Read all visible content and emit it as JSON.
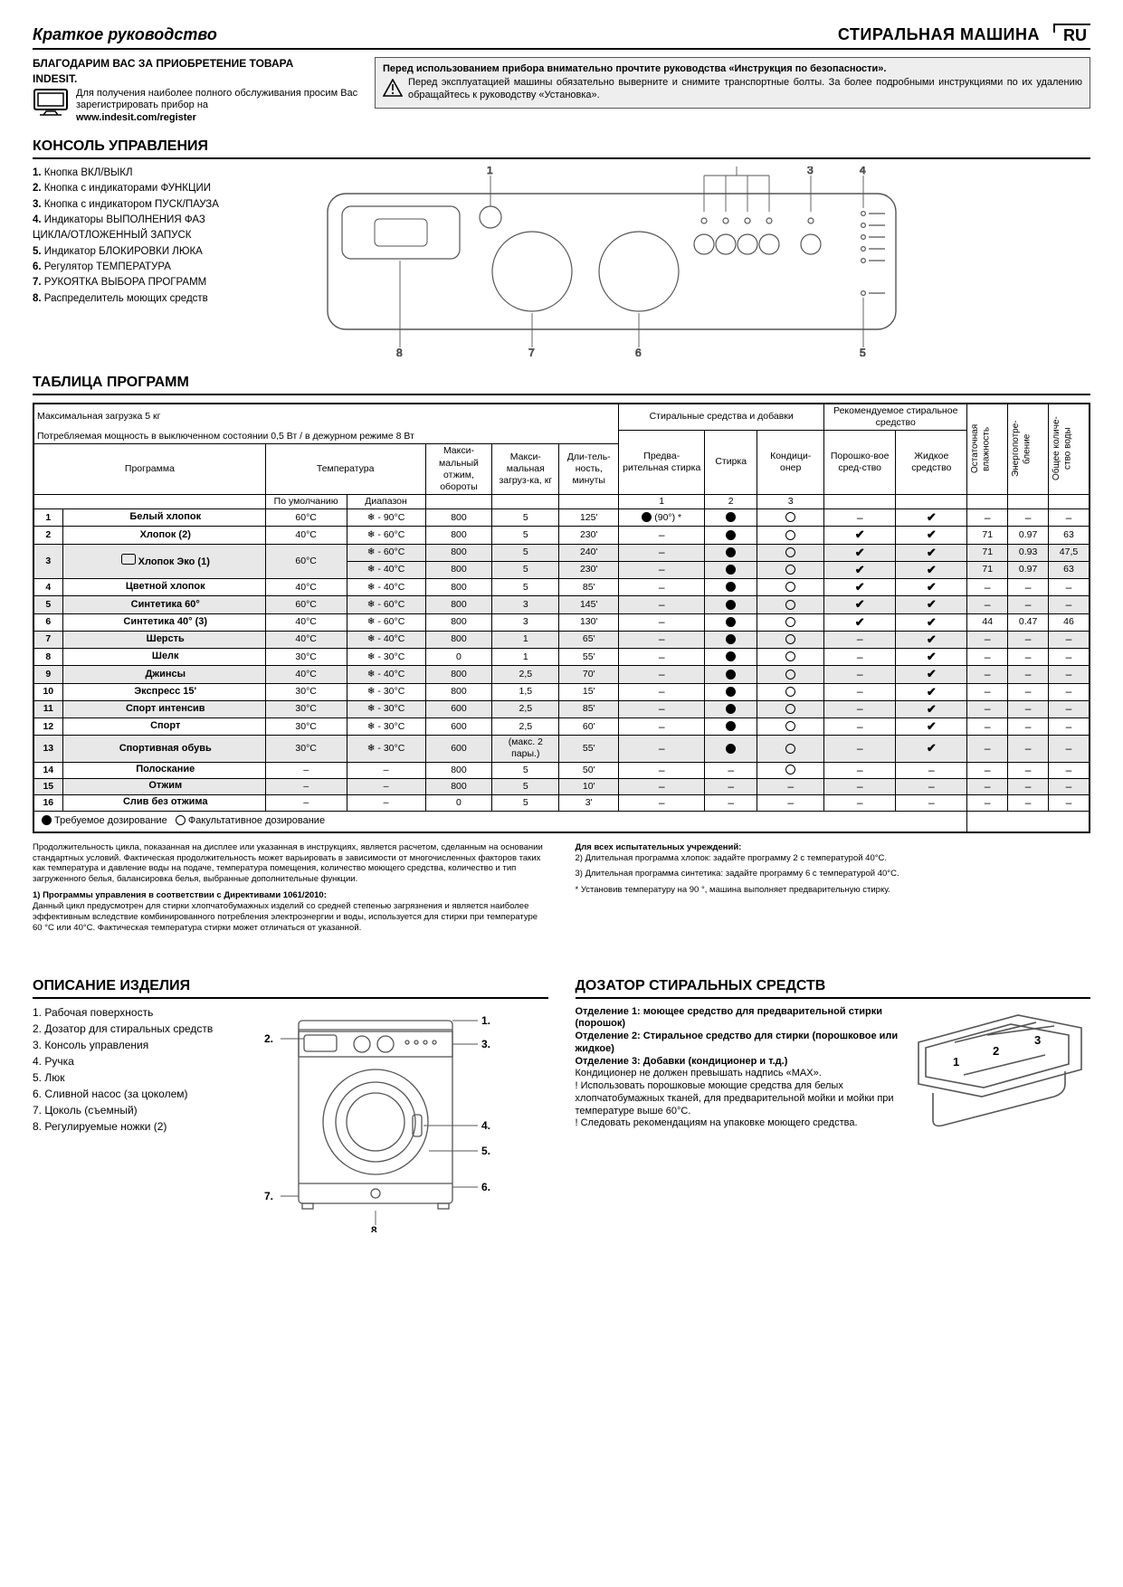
{
  "header": {
    "guide_title": "Краткое руководство",
    "product_title": "СТИРАЛЬНАЯ МАШИНА",
    "lang": "RU"
  },
  "thanks": {
    "line1": "БЛАГОДАРИМ ВАС ЗА ПРИОБРЕТЕНИЕ ТОВАРА",
    "brand": "INDESIT.",
    "text": "Для получения наиболее полного обслуживания просим Вас зарегистрировать прибор на",
    "link": "www.indesit.com/register"
  },
  "warning": {
    "head": "Перед использованием прибора внимательно прочтите руководства «Инструкция по безопасности».",
    "body": "Перед эксплуатацией машины обязательно выверните и снимите транспортные болты. За более подробными инструкциями по их удалению обращайтесь к руководству «Установка»."
  },
  "control_panel": {
    "title": "КОНСОЛЬ УПРАВЛЕНИЯ",
    "items": [
      "Кнопка ВКЛ/ВЫКЛ",
      "Кнопка с индикаторами ФУНКЦИИ",
      "Кнопка с индикатором ПУСК/ПАУЗА",
      "Индикаторы ВЫПОЛНЕНИЯ ФАЗ",
      "ЦИКЛА/ОТЛОЖЕННЫЙ ЗАПУСК",
      "Индикатор БЛОКИРОВКИ ЛЮКА",
      "Регулятор ТЕМПЕРАТУРА",
      "РУКОЯТКА ВЫБОРА ПРОГРАММ",
      "Распределитель моющих средств"
    ],
    "item_numbers": [
      "1.",
      "2.",
      "3.",
      "4.",
      "",
      "5.",
      "6.",
      "7.",
      "8."
    ],
    "diagram_labels": [
      "1",
      "2",
      "3",
      "4",
      "5",
      "6",
      "7",
      "8"
    ]
  },
  "programs": {
    "title": "ТАБЛИЦА ПРОГРАММ",
    "meta1": "Максимальная загрузка 5 кг",
    "meta2": "Потребляемая мощность в выключенном состоянии 0,5 Вт / в дежурном режиме 8 Вт",
    "head": {
      "program": "Программа",
      "temperature": "Температура",
      "temp_default": "По умолчанию",
      "temp_range": "Диапазон",
      "max_spin": "Макси-мальный отжим, обороты",
      "max_load": "Макси-мальная загруз-ка, кг",
      "duration": "Дли-тель-ность, минуты",
      "additives": "Стиральные средства и добавки",
      "recommended": "Рекомендуемое стиральное средство",
      "prewash": "Предва-рительная стирка",
      "wash": "Стирка",
      "softener": "Кондици-онер",
      "powder": "Порошко-вое сред-ство",
      "liquid": "Жидкое средство",
      "humidity": "Остаточная влажность",
      "energy": "Энергопотре-бление",
      "water": "Общее количе-ство воды",
      "c1": "1",
      "c2": "2",
      "c3": "3"
    },
    "rows": [
      {
        "n": "1",
        "name": "Белый хлопок",
        "t": "60°C",
        "r": "❄ - 90°C",
        "spin": "800",
        "load": "5",
        "dur": "125'",
        "pre": "● (90°) *",
        "wash": "●",
        "soft": "○",
        "pow": "–",
        "liq": "✔",
        "hum": "–",
        "en": "–",
        "wat": "–",
        "shade": false
      },
      {
        "n": "2",
        "name": "Хлопок (2)",
        "t": "40°C",
        "r": "❄ - 60°C",
        "spin": "800",
        "load": "5",
        "dur": "230'",
        "pre": "–",
        "wash": "●",
        "soft": "○",
        "pow": "✔",
        "liq": "✔",
        "hum": "71",
        "en": "0.97",
        "wat": "63",
        "shade": false
      },
      {
        "n": "3",
        "name": "Хлопок Эко (1)",
        "eco": true,
        "t": "60°C",
        "r": "❄ - 60°C",
        "spin": "800",
        "load": "5",
        "dur": "240'",
        "pre": "–",
        "wash": "●",
        "soft": "○",
        "pow": "✔",
        "liq": "✔",
        "hum": "71",
        "en": "0.93",
        "wat": "47,5",
        "shade": true,
        "rowspan": 2
      },
      {
        "n": "",
        "name": "",
        "t": "",
        "r": "❄ - 40°C",
        "spin": "800",
        "load": "5",
        "dur": "230'",
        "pre": "–",
        "wash": "●",
        "soft": "○",
        "pow": "✔",
        "liq": "✔",
        "hum": "71",
        "en": "0.97",
        "wat": "63",
        "shade": true,
        "sub": true
      },
      {
        "n": "4",
        "name": "Цветной хлопок",
        "t": "40°C",
        "r": "❄ - 40°C",
        "spin": "800",
        "load": "5",
        "dur": "85'",
        "pre": "–",
        "wash": "●",
        "soft": "○",
        "pow": "✔",
        "liq": "✔",
        "hum": "–",
        "en": "–",
        "wat": "–",
        "shade": false
      },
      {
        "n": "5",
        "name": "Синтетика 60°",
        "t": "60°C",
        "r": "❄ - 60°C",
        "spin": "800",
        "load": "3",
        "dur": "145'",
        "pre": "–",
        "wash": "●",
        "soft": "○",
        "pow": "✔",
        "liq": "✔",
        "hum": "–",
        "en": "–",
        "wat": "–",
        "shade": true
      },
      {
        "n": "6",
        "name": "Синтетика 40° (3)",
        "t": "40°C",
        "r": "❄ - 60°C",
        "spin": "800",
        "load": "3",
        "dur": "130'",
        "pre": "–",
        "wash": "●",
        "soft": "○",
        "pow": "✔",
        "liq": "✔",
        "hum": "44",
        "en": "0.47",
        "wat": "46",
        "shade": false
      },
      {
        "n": "7",
        "name": "Шерсть",
        "t": "40°C",
        "r": "❄ - 40°C",
        "spin": "800",
        "load": "1",
        "dur": "65'",
        "pre": "–",
        "wash": "●",
        "soft": "○",
        "pow": "–",
        "liq": "✔",
        "hum": "–",
        "en": "–",
        "wat": "–",
        "shade": true
      },
      {
        "n": "8",
        "name": "Шелк",
        "t": "30°C",
        "r": "❄ - 30°C",
        "spin": "0",
        "load": "1",
        "dur": "55'",
        "pre": "–",
        "wash": "●",
        "soft": "○",
        "pow": "–",
        "liq": "✔",
        "hum": "–",
        "en": "–",
        "wat": "–",
        "shade": false
      },
      {
        "n": "9",
        "name": "Джинсы",
        "t": "40°C",
        "r": "❄ - 40°C",
        "spin": "800",
        "load": "2,5",
        "dur": "70'",
        "pre": "–",
        "wash": "●",
        "soft": "○",
        "pow": "–",
        "liq": "✔",
        "hum": "–",
        "en": "–",
        "wat": "–",
        "shade": true
      },
      {
        "n": "10",
        "name": "Экспресс 15'",
        "t": "30°C",
        "r": "❄ - 30°C",
        "spin": "800",
        "load": "1,5",
        "dur": "15'",
        "pre": "–",
        "wash": "●",
        "soft": "○",
        "pow": "–",
        "liq": "✔",
        "hum": "–",
        "en": "–",
        "wat": "–",
        "shade": false
      },
      {
        "n": "11",
        "name": "Спорт интенсив",
        "t": "30°C",
        "r": "❄ - 30°C",
        "spin": "600",
        "load": "2,5",
        "dur": "85'",
        "pre": "–",
        "wash": "●",
        "soft": "○",
        "pow": "–",
        "liq": "✔",
        "hum": "–",
        "en": "–",
        "wat": "–",
        "shade": true
      },
      {
        "n": "12",
        "name": "Спорт",
        "t": "30°C",
        "r": "❄ - 30°C",
        "spin": "600",
        "load": "2,5",
        "dur": "60'",
        "pre": "–",
        "wash": "●",
        "soft": "○",
        "pow": "–",
        "liq": "✔",
        "hum": "–",
        "en": "–",
        "wat": "–",
        "shade": false
      },
      {
        "n": "13",
        "name": "Спортивная обувь",
        "t": "30°C",
        "r": "❄ - 30°C",
        "spin": "600",
        "load": "(макс. 2 пары.)",
        "dur": "55'",
        "pre": "–",
        "wash": "●",
        "soft": "○",
        "pow": "–",
        "liq": "✔",
        "hum": "–",
        "en": "–",
        "wat": "–",
        "shade": true
      },
      {
        "n": "14",
        "name": "Полоскание",
        "t": "–",
        "r": "–",
        "spin": "800",
        "load": "5",
        "dur": "50'",
        "pre": "–",
        "wash": "–",
        "soft": "○",
        "pow": "–",
        "liq": "–",
        "hum": "–",
        "en": "–",
        "wat": "–",
        "shade": false
      },
      {
        "n": "15",
        "name": "Отжим",
        "t": "–",
        "r": "–",
        "spin": "800",
        "load": "5",
        "dur": "10'",
        "pre": "–",
        "wash": "–",
        "soft": "–",
        "pow": "–",
        "liq": "–",
        "hum": "–",
        "en": "–",
        "wat": "–",
        "shade": true
      },
      {
        "n": "16",
        "name": "Слив без отжима",
        "t": "–",
        "r": "–",
        "spin": "0",
        "load": "5",
        "dur": "3'",
        "pre": "–",
        "wash": "–",
        "soft": "–",
        "pow": "–",
        "liq": "–",
        "hum": "–",
        "en": "–",
        "wat": "–",
        "shade": false
      }
    ],
    "legend": "● Требуемое дозирование   ○ Факультативное дозирование"
  },
  "footnotes": {
    "left1": "Продолжительность цикла, показанная на дисплее или указанная в инструкциях, является расчетом, сделанным на основании стандартных условий. Фактическая продолжительность может варьировать в зависимости от многочисленных факторов таких как температура и давление воды на подаче, температура помещения, количество моющего средства, количество и тип загруженного белья, балансировка белья, выбранные дополнительные функции.",
    "left2_head": "1) Программы управления в соответствии с Директивами 1061/2010:",
    "left2": "Данный цикл предусмотрен для стирки хлопчатобумажных изделий со средней степенью загрязнения и является наиболее эффективным вследствие комбинированного потребления электроэнергии и воды, используется для стирки при температуре 60 °C или 40°C. Фактическая температура стирки может отличаться от указанной.",
    "right_head": "Для всех испытательных учреждений:",
    "right1": "2)  Длительная программа хлопок: задайте программу 2 с температурой 40°C.",
    "right2": "3)  Длительная программа синтетика: задайте программу 6 с температурой 40°C.",
    "right3": "* Установив температуру на 90 °, машина выполняет предварительную стирку."
  },
  "description": {
    "title": "ОПИСАНИЕ ИЗДЕЛИЯ",
    "items": [
      "Рабочая поверхность",
      "Дозатор для стиральных средств",
      "Консоль управления",
      "Ручка",
      "Люк",
      "Сливной насос (за цоколем)",
      "Цоколь (съемный)",
      "Регулируемые ножки (2)"
    ],
    "labels": [
      "1.",
      "2.",
      "3.",
      "4.",
      "5.",
      "6.",
      "7.",
      "8."
    ]
  },
  "dispenser": {
    "title": "ДОЗАТОР СТИРАЛЬНЫХ СРЕДСТВ",
    "c1_head": "Отделение 1: моющее средство для предварительной стирки (порошок)",
    "c2_head": "Отделение 2: Стиральное средство для стирки (порошковое или жидкое)",
    "c3_head": "Отделение 3: Добавки (кондиционер и т.д.)",
    "c3_body": "Кондиционер не должен превышать надпись «MAX».",
    "warn1": "! Использовать порошковые моющие средства для белых хлопчатобумажных тканей, для предварительной мойки и мойки при температуре выше 60°C.",
    "warn2": "! Следовать рекомендациям на упаковке моющего средства."
  }
}
